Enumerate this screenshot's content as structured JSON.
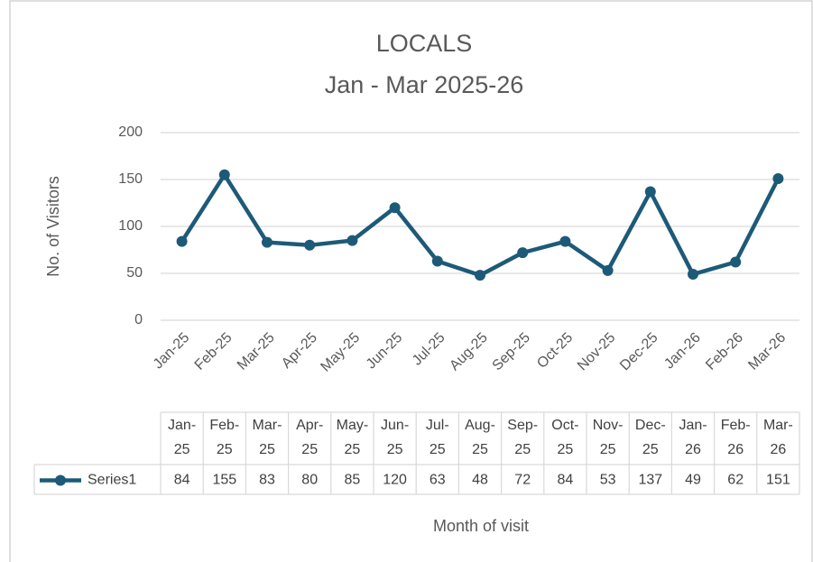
{
  "chart_data": {
    "type": "line",
    "title": "LOCALS",
    "subtitle": "Jan - Mar 2025-26",
    "y_label": "No. of Visitors",
    "x_label": "Month of visit",
    "categories": [
      "Jan-25",
      "Feb-25",
      "Mar-25",
      "Apr-25",
      "May-25",
      "Jun-25",
      "Jul-25",
      "Aug-25",
      "Sep-25",
      "Oct-25",
      "Nov-25",
      "Dec-25",
      "Jan-26",
      "Feb-26",
      "Mar-26"
    ],
    "series": [
      {
        "name": "Series1",
        "color": "#1d5a78",
        "values": [
          84,
          155,
          83,
          80,
          85,
          120,
          63,
          48,
          72,
          84,
          53,
          137,
          49,
          62,
          151
        ]
      }
    ],
    "ylim": [
      0,
      200
    ],
    "yticks": [
      0,
      50,
      100,
      150,
      200
    ],
    "grid": true,
    "data_table": true
  }
}
